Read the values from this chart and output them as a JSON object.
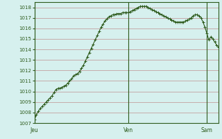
{
  "bg_color": "#d6f0ee",
  "line_color": "#2d5a1b",
  "marker_color": "#2d5a1b",
  "grid_color_major": "#c09090",
  "grid_color_minor": "#dcc8c8",
  "ylim": [
    1007,
    1018.5
  ],
  "yticks": [
    1007,
    1008,
    1009,
    1010,
    1011,
    1012,
    1013,
    1014,
    1015,
    1016,
    1017,
    1018
  ],
  "day_labels": [
    "Jeu",
    "Ven",
    "Sam"
  ],
  "day_positions": [
    0,
    48,
    88
  ],
  "pressure": [
    1007.3,
    1007.8,
    1008.1,
    1008.4,
    1008.6,
    1008.8,
    1009.0,
    1009.2,
    1009.4,
    1009.6,
    1009.9,
    1010.2,
    1010.3,
    1010.3,
    1010.4,
    1010.5,
    1010.6,
    1010.8,
    1011.0,
    1011.2,
    1011.5,
    1011.6,
    1011.7,
    1011.9,
    1012.2,
    1012.5,
    1012.9,
    1013.3,
    1013.7,
    1014.1,
    1014.5,
    1014.9,
    1015.3,
    1015.7,
    1016.1,
    1016.4,
    1016.7,
    1016.9,
    1017.1,
    1017.2,
    1017.3,
    1017.3,
    1017.4,
    1017.4,
    1017.4,
    1017.5,
    1017.5,
    1017.5,
    1017.5,
    1017.6,
    1017.7,
    1017.8,
    1017.9,
    1018.0,
    1018.1,
    1018.1,
    1018.1,
    1018.1,
    1018.0,
    1017.9,
    1017.8,
    1017.7,
    1017.6,
    1017.5,
    1017.4,
    1017.3,
    1017.2,
    1017.1,
    1017.0,
    1016.9,
    1016.8,
    1016.7,
    1016.6,
    1016.6,
    1016.6,
    1016.6,
    1016.6,
    1016.7,
    1016.8,
    1016.9,
    1017.0,
    1017.2,
    1017.3,
    1017.3,
    1017.2,
    1017.0,
    1016.6,
    1016.1,
    1015.5,
    1014.9,
    1015.2,
    1015.0,
    1014.7,
    1014.4,
    1014.2
  ]
}
